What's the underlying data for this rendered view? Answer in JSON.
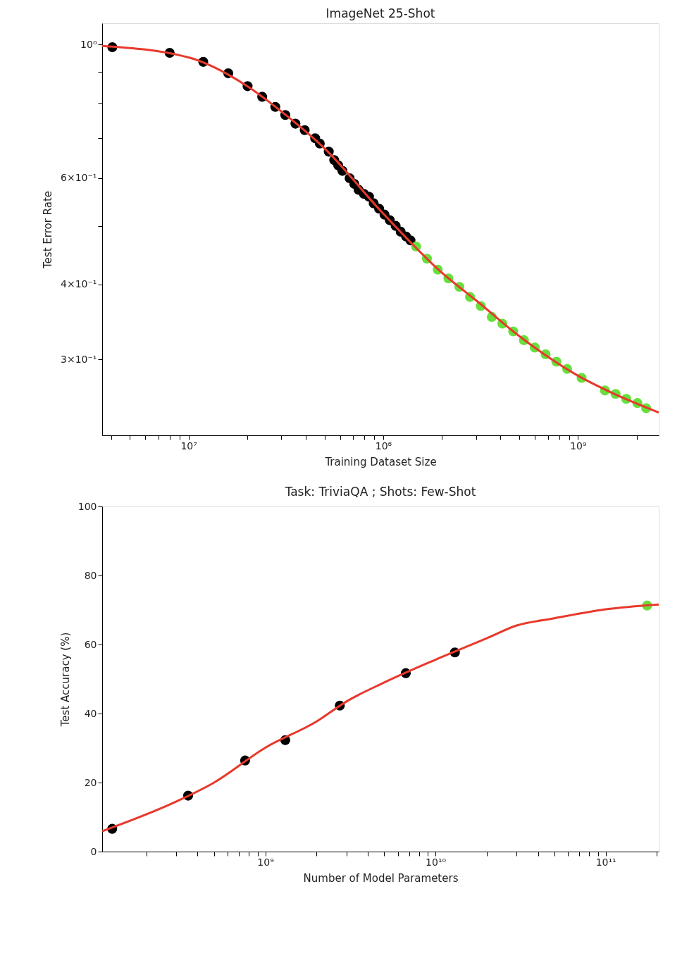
{
  "chart_data": [
    {
      "type": "scatter",
      "title": "ImageNet 25-Shot",
      "xlabel": "Training Dataset Size",
      "ylabel": "Test Error Rate",
      "log": "xy",
      "grid": false,
      "xlim": [
        3600000,
        2600000000
      ],
      "ylim": [
        0.2245,
        1.085
      ],
      "xticks": [
        {
          "value": 4000000,
          "label": null
        },
        {
          "value": 5000000,
          "label": null
        },
        {
          "value": 6000000,
          "label": null
        },
        {
          "value": 7000000,
          "label": null
        },
        {
          "value": 8000000,
          "label": null
        },
        {
          "value": 9000000,
          "label": null
        },
        {
          "value": 10000000,
          "label": "10⁷"
        },
        {
          "value": 20000000,
          "label": null
        },
        {
          "value": 30000000,
          "label": null
        },
        {
          "value": 40000000,
          "label": null
        },
        {
          "value": 50000000,
          "label": null
        },
        {
          "value": 60000000,
          "label": null
        },
        {
          "value": 70000000,
          "label": null
        },
        {
          "value": 80000000,
          "label": null
        },
        {
          "value": 90000000,
          "label": null
        },
        {
          "value": 100000000,
          "label": "10⁸"
        },
        {
          "value": 200000000,
          "label": null
        },
        {
          "value": 300000000,
          "label": null
        },
        {
          "value": 400000000,
          "label": null
        },
        {
          "value": 500000000,
          "label": null
        },
        {
          "value": 600000000,
          "label": null
        },
        {
          "value": 700000000,
          "label": null
        },
        {
          "value": 800000000,
          "label": null
        },
        {
          "value": 900000000,
          "label": null
        },
        {
          "value": 1000000000,
          "label": "10⁹"
        },
        {
          "value": 2000000000,
          "label": null
        }
      ],
      "yticks": [
        {
          "value": 0.3,
          "label": "3×10⁻¹"
        },
        {
          "value": 0.4,
          "label": "4×10⁻¹"
        },
        {
          "value": 0.5,
          "label": null
        },
        {
          "value": 0.6,
          "label": "6×10⁻¹"
        },
        {
          "value": 0.7,
          "label": null
        },
        {
          "value": 0.8,
          "label": null
        },
        {
          "value": 0.9,
          "label": null
        },
        {
          "value": 1,
          "label": "10⁰"
        }
      ],
      "series": [
        {
          "marker": "circle",
          "color": "#000000",
          "x": [
            4060000,
            8000000,
            11900000,
            16000000,
            20100000,
            23900000,
            27900000,
            31400000,
            35400000,
            39500000,
            44700000,
            47200000,
            52500000,
            56000000,
            58700000,
            61700000,
            67200000,
            71000000,
            74700000,
            79600000,
            84500000,
            89300000,
            95200000,
            101500000,
            108000000,
            115800000,
            122900000,
            131000000,
            138000000
          ],
          "values": [
            0.99,
            0.969,
            0.936,
            0.896,
            0.853,
            0.819,
            0.788,
            0.764,
            0.739,
            0.721,
            0.699,
            0.685,
            0.664,
            0.643,
            0.63,
            0.617,
            0.6,
            0.587,
            0.574,
            0.565,
            0.559,
            0.545,
            0.534,
            0.522,
            0.511,
            0.5,
            0.489,
            0.48,
            0.473
          ]
        },
        {
          "marker": "circle",
          "color": "#66e03c",
          "x": [
            147500000,
            167600000,
            190500000,
            216000000,
            246000000,
            279000000,
            317000000,
            361000000,
            409000000,
            465000000,
            528000000,
            600000000,
            682000000,
            775000000,
            880000000,
            1044000000,
            1376000000,
            1560000000,
            1770000000,
            2020000000,
            2240000000
          ],
          "values": [
            0.462,
            0.441,
            0.423,
            0.409,
            0.396,
            0.381,
            0.368,
            0.353,
            0.344,
            0.334,
            0.323,
            0.314,
            0.306,
            0.2975,
            0.2894,
            0.2796,
            0.2665,
            0.263,
            0.258,
            0.254,
            0.249
          ]
        },
        {
          "type": "line",
          "marker": "none",
          "line_style": "solid",
          "color": "#e8392c",
          "x": [
            3600000,
            10000000,
            20000000,
            30000000,
            50000000,
            100000000,
            200000000,
            300000000,
            500000000,
            1000000000,
            1500000000,
            2600000000
          ],
          "values": [
            0.995,
            0.952,
            0.853,
            0.774,
            0.672,
            0.524,
            0.418,
            0.376,
            0.328,
            0.282,
            0.264,
            0.245
          ]
        }
      ]
    },
    {
      "type": "scatter",
      "title": "Task: TriviaQA ; Shots: Few-Shot",
      "xlabel": "Number of Model Parameters",
      "ylabel": "Test Accuracy (%)",
      "log": "x",
      "grid": false,
      "xlim": [
        110000000,
        205000000000
      ],
      "ylim": [
        0,
        100
      ],
      "xticks": [
        {
          "value": 200000000,
          "label": null
        },
        {
          "value": 300000000,
          "label": null
        },
        {
          "value": 400000000,
          "label": null
        },
        {
          "value": 500000000,
          "label": null
        },
        {
          "value": 600000000,
          "label": null
        },
        {
          "value": 700000000,
          "label": null
        },
        {
          "value": 800000000,
          "label": null
        },
        {
          "value": 900000000,
          "label": null
        },
        {
          "value": 1000000000,
          "label": "10⁹"
        },
        {
          "value": 2000000000,
          "label": null
        },
        {
          "value": 3000000000,
          "label": null
        },
        {
          "value": 4000000000,
          "label": null
        },
        {
          "value": 5000000000,
          "label": null
        },
        {
          "value": 6000000000,
          "label": null
        },
        {
          "value": 7000000000,
          "label": null
        },
        {
          "value": 8000000000,
          "label": null
        },
        {
          "value": 9000000000,
          "label": null
        },
        {
          "value": 10000000000,
          "label": "10¹⁰"
        },
        {
          "value": 20000000000,
          "label": null
        },
        {
          "value": 30000000000,
          "label": null
        },
        {
          "value": 40000000000,
          "label": null
        },
        {
          "value": 50000000000,
          "label": null
        },
        {
          "value": 60000000000,
          "label": null
        },
        {
          "value": 70000000000,
          "label": null
        },
        {
          "value": 80000000000,
          "label": null
        },
        {
          "value": 90000000000,
          "label": null
        },
        {
          "value": 100000000000,
          "label": "10¹¹"
        },
        {
          "value": 200000000000,
          "label": null
        }
      ],
      "yticks": [
        0,
        20,
        40,
        60,
        80,
        100
      ],
      "series": [
        {
          "marker": "circle",
          "color": "#000000",
          "x": [
            126000000,
            352000000,
            761000000,
            1310000000,
            2740000000,
            6690000000,
            13000000000
          ],
          "values": [
            6.6,
            16.2,
            26.4,
            32.3,
            42.3,
            51.7,
            57.7
          ]
        },
        {
          "marker": "circle",
          "color": "#66e03c",
          "x": [
            175000000000
          ],
          "values": [
            71.3
          ]
        },
        {
          "type": "line",
          "marker": "none",
          "line_style": "solid",
          "color": "#e8392c",
          "x": [
            110000000,
            300000000,
            500000000,
            1000000000,
            2000000000,
            3000000000,
            5000000000,
            10000000000,
            20000000000,
            30000000000,
            50000000000,
            100000000000,
            205000000000
          ],
          "values": [
            5.9,
            14.5,
            20.0,
            30.1,
            37.7,
            43.5,
            49.0,
            55.6,
            61.8,
            65.5,
            67.6,
            70.2,
            71.6
          ]
        }
      ]
    }
  ]
}
